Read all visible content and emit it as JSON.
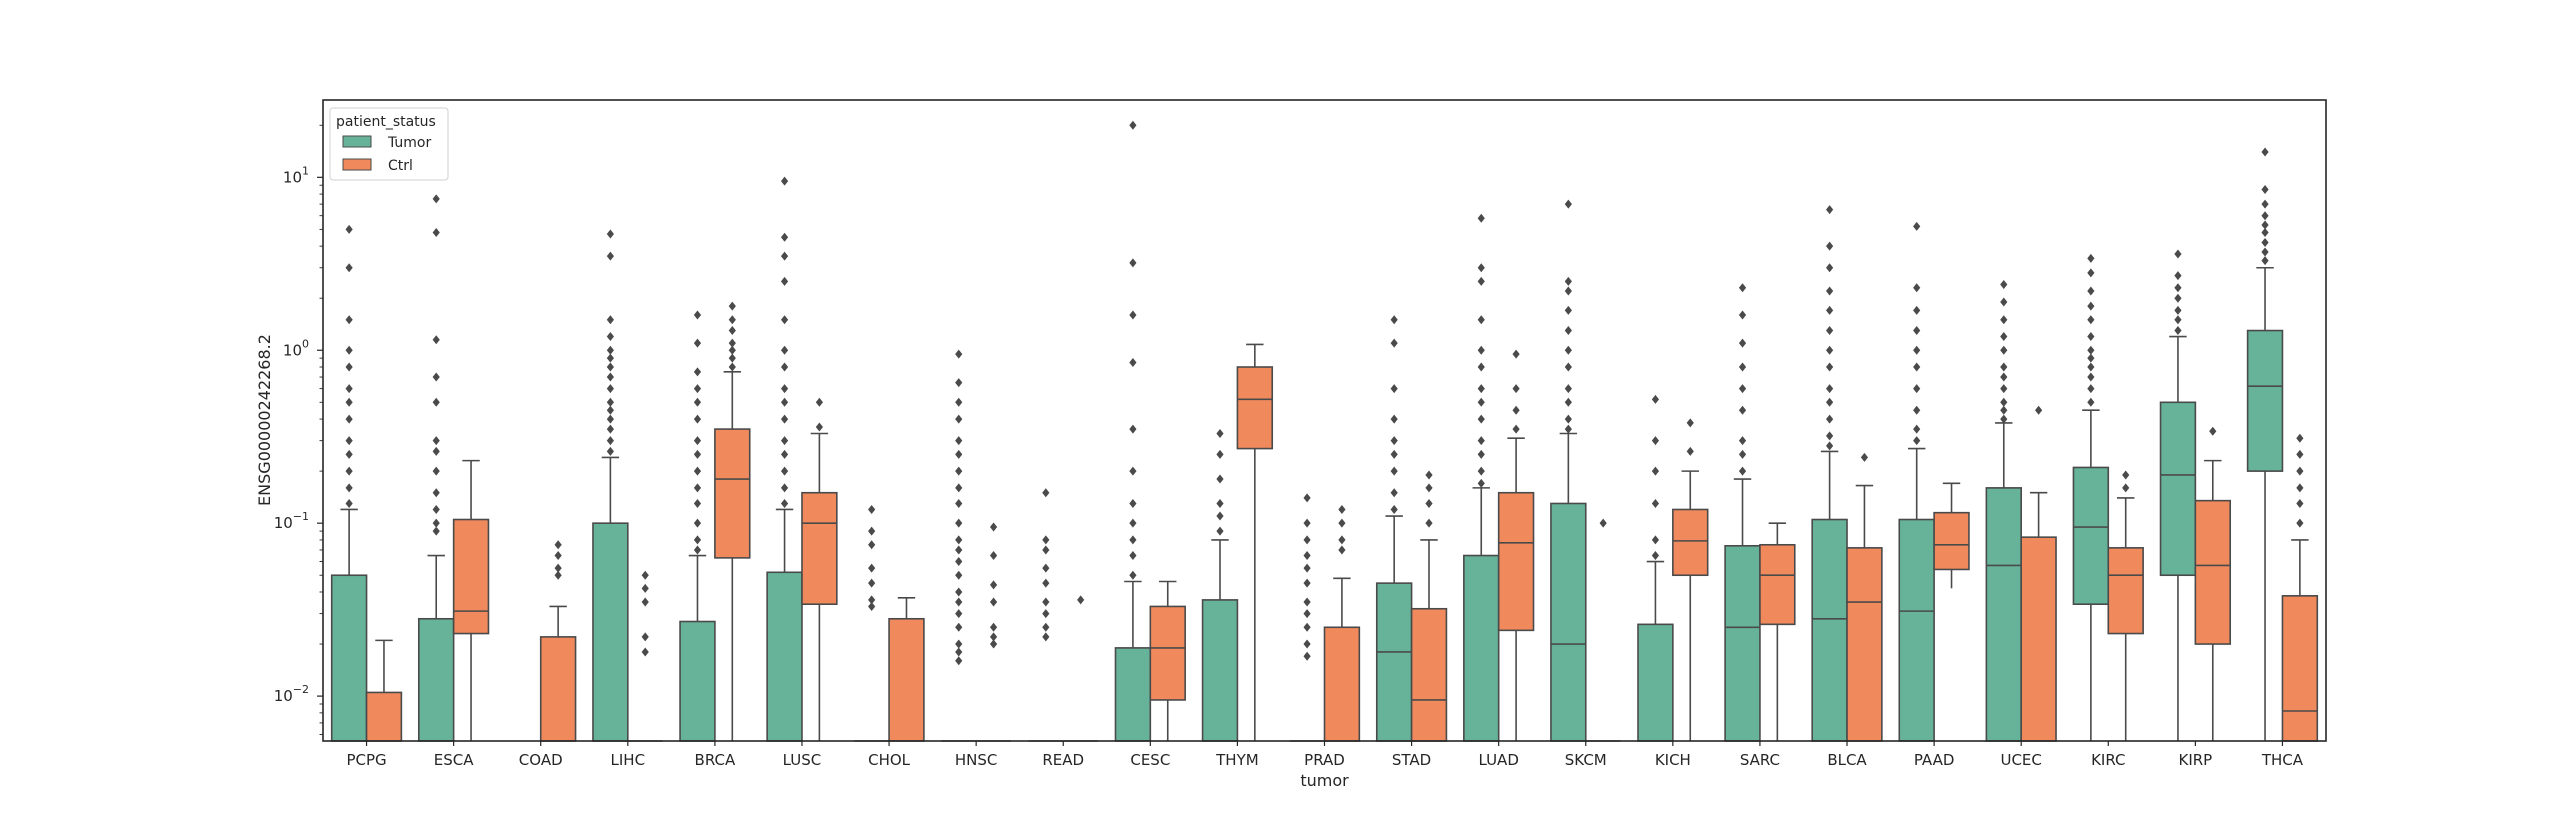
{
  "chart_data": {
    "type": "box",
    "xlabel": "tumor",
    "ylabel": "ENSG00000242268.2",
    "yscale": "log",
    "ylim": [
      0.0055,
      28
    ],
    "yticks": [
      {
        "value": 0.01,
        "base": "10",
        "exp": "−2"
      },
      {
        "value": 0.1,
        "base": "10",
        "exp": "−1"
      },
      {
        "value": 1,
        "base": "10",
        "exp": "0"
      },
      {
        "value": 10,
        "base": "10",
        "exp": "1"
      }
    ],
    "grid": false,
    "legend": {
      "title": "patient_status",
      "placement": "top-left"
    },
    "colors": {
      "Tumor": "#66b399",
      "Ctrl": "#f08a5d",
      "line": "#4a4a4a"
    },
    "categories": [
      "PCPG",
      "ESCA",
      "COAD",
      "LIHC",
      "BRCA",
      "LUSC",
      "CHOL",
      "HNSC",
      "READ",
      "CESC",
      "THYM",
      "PRAD",
      "STAD",
      "LUAD",
      "SKCM",
      "KICH",
      "SARC",
      "BLCA",
      "PAAD",
      "UCEC",
      "KIRC",
      "KIRP",
      "THCA"
    ],
    "series": [
      {
        "name": "Tumor",
        "boxes": [
          {
            "q1": 0.0055,
            "med": 0.0055,
            "q3": 0.05,
            "wlo": 0.0055,
            "whi": 0.12,
            "fliers": [
              0.13,
              0.16,
              0.2,
              0.25,
              0.3,
              0.4,
              0.5,
              0.6,
              0.8,
              1.0,
              1.5,
              3.0,
              5.0
            ]
          },
          {
            "q1": 0.0055,
            "med": 0.0055,
            "q3": 0.028,
            "wlo": 0.0055,
            "whi": 0.065,
            "fliers": [
              0.09,
              0.1,
              0.12,
              0.15,
              0.2,
              0.26,
              0.3,
              0.5,
              0.7,
              1.15,
              4.8,
              7.5
            ]
          },
          null,
          {
            "q1": 0.0055,
            "med": 0.0055,
            "q3": 0.1,
            "wlo": 0.0055,
            "whi": 0.24,
            "fliers": [
              0.26,
              0.3,
              0.35,
              0.4,
              0.45,
              0.5,
              0.6,
              0.7,
              0.8,
              0.9,
              1.0,
              1.2,
              1.5,
              3.5,
              4.7
            ]
          },
          {
            "q1": 0.0055,
            "med": 0.0055,
            "q3": 0.027,
            "wlo": 0.0055,
            "whi": 0.065,
            "fliers": [
              0.07,
              0.08,
              0.1,
              0.13,
              0.16,
              0.2,
              0.25,
              0.3,
              0.4,
              0.5,
              0.6,
              0.75,
              1.1,
              1.6
            ]
          },
          {
            "q1": 0.0055,
            "med": 0.0055,
            "q3": 0.052,
            "wlo": 0.0055,
            "whi": 0.12,
            "fliers": [
              0.13,
              0.16,
              0.2,
              0.25,
              0.3,
              0.4,
              0.5,
              0.6,
              0.8,
              1.0,
              1.5,
              2.5,
              3.5,
              4.5,
              9.5
            ]
          },
          {
            "q1": 0.0055,
            "med": 0.0055,
            "q3": 0.0055,
            "wlo": 0.0055,
            "whi": 0.0055,
            "fliers": [
              0.033,
              0.036,
              0.045,
              0.055,
              0.075,
              0.09,
              0.12
            ]
          },
          {
            "q1": 0.0055,
            "med": 0.0055,
            "q3": 0.0055,
            "wlo": 0.0055,
            "whi": 0.0055,
            "fliers": [
              0.016,
              0.018,
              0.02,
              0.025,
              0.03,
              0.035,
              0.04,
              0.05,
              0.06,
              0.07,
              0.08,
              0.1,
              0.13,
              0.16,
              0.2,
              0.25,
              0.3,
              0.4,
              0.5,
              0.65,
              0.95
            ]
          },
          {
            "q1": 0.0055,
            "med": 0.0055,
            "q3": 0.0055,
            "wlo": 0.0055,
            "whi": 0.0055,
            "fliers": [
              0.022,
              0.025,
              0.03,
              0.035,
              0.045,
              0.055,
              0.07,
              0.08,
              0.15
            ]
          },
          {
            "q1": 0.0055,
            "med": 0.0055,
            "q3": 0.019,
            "wlo": 0.0055,
            "whi": 0.046,
            "fliers": [
              0.05,
              0.065,
              0.08,
              0.1,
              0.13,
              0.2,
              0.35,
              0.85,
              1.6,
              3.2,
              20
            ]
          },
          {
            "q1": 0.0055,
            "med": 0.0055,
            "q3": 0.036,
            "wlo": 0.0055,
            "whi": 0.08,
            "fliers": [
              0.09,
              0.11,
              0.13,
              0.18,
              0.25,
              0.33
            ]
          },
          {
            "q1": 0.0055,
            "med": 0.0055,
            "q3": 0.0055,
            "wlo": 0.0055,
            "whi": 0.0055,
            "fliers": [
              0.017,
              0.02,
              0.025,
              0.03,
              0.035,
              0.045,
              0.055,
              0.065,
              0.08,
              0.1,
              0.14
            ]
          },
          {
            "q1": 0.0055,
            "med": 0.018,
            "q3": 0.045,
            "wlo": 0.0055,
            "whi": 0.11,
            "fliers": [
              0.12,
              0.15,
              0.2,
              0.25,
              0.3,
              0.4,
              0.6,
              1.1,
              1.5
            ]
          },
          {
            "q1": 0.0055,
            "med": 0.0055,
            "q3": 0.065,
            "wlo": 0.0055,
            "whi": 0.16,
            "fliers": [
              0.17,
              0.2,
              0.25,
              0.3,
              0.4,
              0.5,
              0.6,
              0.8,
              1.0,
              1.5,
              2.5,
              3.0,
              5.8
            ]
          },
          {
            "q1": 0.0055,
            "med": 0.02,
            "q3": 0.13,
            "wlo": 0.0055,
            "whi": 0.33,
            "fliers": [
              0.35,
              0.4,
              0.5,
              0.6,
              0.8,
              1.0,
              1.3,
              1.7,
              2.2,
              2.5,
              7.0
            ]
          },
          {
            "q1": 0.0055,
            "med": 0.0055,
            "q3": 0.026,
            "wlo": 0.0055,
            "whi": 0.06,
            "fliers": [
              0.065,
              0.08,
              0.13,
              0.2,
              0.3,
              0.52
            ]
          },
          {
            "q1": 0.0055,
            "med": 0.025,
            "q3": 0.074,
            "wlo": 0.0055,
            "whi": 0.18,
            "fliers": [
              0.2,
              0.25,
              0.3,
              0.45,
              0.6,
              0.8,
              1.1,
              1.6,
              2.3
            ]
          },
          {
            "q1": 0.0055,
            "med": 0.028,
            "q3": 0.105,
            "wlo": 0.0055,
            "whi": 0.26,
            "fliers": [
              0.28,
              0.32,
              0.4,
              0.5,
              0.6,
              0.8,
              1.0,
              1.3,
              1.7,
              2.2,
              3.0,
              4.0,
              6.5
            ]
          },
          {
            "q1": 0.0055,
            "med": 0.031,
            "q3": 0.105,
            "wlo": 0.0055,
            "whi": 0.27,
            "fliers": [
              0.3,
              0.35,
              0.45,
              0.6,
              0.8,
              1.0,
              1.3,
              1.7,
              2.3,
              5.2
            ]
          },
          {
            "q1": 0.0055,
            "med": 0.057,
            "q3": 0.16,
            "wlo": 0.0055,
            "whi": 0.38,
            "fliers": [
              0.4,
              0.45,
              0.5,
              0.6,
              0.7,
              0.8,
              1.0,
              1.2,
              1.5,
              1.9,
              2.4
            ]
          },
          {
            "q1": 0.034,
            "med": 0.095,
            "q3": 0.21,
            "wlo": 0.0055,
            "whi": 0.45,
            "fliers": [
              0.5,
              0.6,
              0.7,
              0.8,
              0.9,
              1.0,
              1.2,
              1.5,
              1.8,
              2.2,
              2.8,
              3.4
            ]
          },
          {
            "q1": 0.05,
            "med": 0.19,
            "q3": 0.5,
            "wlo": 0.0055,
            "whi": 1.2,
            "fliers": [
              1.3,
              1.5,
              1.7,
              2.0,
              2.3,
              2.7,
              3.6
            ]
          },
          {
            "q1": 0.2,
            "med": 0.62,
            "q3": 1.3,
            "wlo": 0.0055,
            "whi": 3.0,
            "fliers": [
              3.3,
              3.7,
              4.2,
              4.8,
              5.3,
              6.0,
              7.0,
              8.5,
              14
            ]
          }
        ]
      },
      {
        "name": "Ctrl",
        "boxes": [
          {
            "q1": 0.0055,
            "med": 0.0055,
            "q3": 0.0105,
            "wlo": 0.0055,
            "whi": 0.021,
            "fliers": []
          },
          {
            "q1": 0.023,
            "med": 0.031,
            "q3": 0.105,
            "wlo": 0.0055,
            "whi": 0.23,
            "fliers": []
          },
          {
            "q1": 0.0055,
            "med": 0.0055,
            "q3": 0.022,
            "wlo": 0.0055,
            "whi": 0.033,
            "fliers": [
              0.05,
              0.055,
              0.065,
              0.075
            ]
          },
          {
            "q1": 0.0055,
            "med": 0.0055,
            "q3": 0.0055,
            "wlo": 0.0055,
            "whi": 0.0055,
            "fliers": [
              0.018,
              0.022,
              0.035,
              0.042,
              0.05
            ]
          },
          {
            "q1": 0.063,
            "med": 0.18,
            "q3": 0.35,
            "wlo": 0.0055,
            "whi": 0.75,
            "fliers": [
              0.8,
              0.9,
              1.0,
              1.1,
              1.3,
              1.5,
              1.8
            ]
          },
          {
            "q1": 0.034,
            "med": 0.1,
            "q3": 0.15,
            "wlo": 0.0055,
            "whi": 0.33,
            "fliers": [
              0.36,
              0.5
            ]
          },
          {
            "q1": 0.0055,
            "med": 0.0055,
            "q3": 0.028,
            "wlo": 0.0055,
            "whi": 0.037,
            "fliers": []
          },
          {
            "q1": 0.0055,
            "med": 0.0055,
            "q3": 0.0055,
            "wlo": 0.0055,
            "whi": 0.0055,
            "fliers": [
              0.02,
              0.022,
              0.025,
              0.035,
              0.044,
              0.065,
              0.095
            ]
          },
          {
            "q1": 0.0055,
            "med": 0.0055,
            "q3": 0.0055,
            "wlo": 0.0055,
            "whi": 0.0055,
            "fliers": [
              0.036
            ]
          },
          {
            "q1": 0.0095,
            "med": 0.019,
            "q3": 0.033,
            "wlo": 0.0055,
            "whi": 0.046,
            "fliers": []
          },
          {
            "q1": 0.27,
            "med": 0.52,
            "q3": 0.8,
            "wlo": 0.0055,
            "whi": 1.08,
            "fliers": []
          },
          {
            "q1": 0.0055,
            "med": 0.0055,
            "q3": 0.025,
            "wlo": 0.0055,
            "whi": 0.048,
            "fliers": [
              0.07,
              0.08,
              0.1,
              0.12
            ]
          },
          {
            "q1": 0.0055,
            "med": 0.0095,
            "q3": 0.032,
            "wlo": 0.0055,
            "whi": 0.08,
            "fliers": [
              0.1,
              0.13,
              0.16,
              0.19
            ]
          },
          {
            "q1": 0.024,
            "med": 0.077,
            "q3": 0.15,
            "wlo": 0.0055,
            "whi": 0.31,
            "fliers": [
              0.35,
              0.45,
              0.6,
              0.95
            ]
          },
          {
            "q1": 0.0055,
            "med": 0.0055,
            "q3": 0.0055,
            "wlo": 0.0055,
            "whi": 0.0055,
            "fliers": [
              0.1
            ]
          },
          {
            "q1": 0.05,
            "med": 0.079,
            "q3": 0.12,
            "wlo": 0.0055,
            "whi": 0.2,
            "fliers": [
              0.26,
              0.38
            ]
          },
          {
            "q1": 0.026,
            "med": 0.05,
            "q3": 0.075,
            "wlo": 0.0055,
            "whi": 0.1,
            "fliers": []
          },
          {
            "q1": 0.0055,
            "med": 0.035,
            "q3": 0.072,
            "wlo": 0.0055,
            "whi": 0.165,
            "fliers": [
              0.24
            ]
          },
          {
            "q1": 0.054,
            "med": 0.075,
            "q3": 0.115,
            "wlo": 0.042,
            "whi": 0.17,
            "fliers": []
          },
          {
            "q1": 0.0055,
            "med": 0.0055,
            "q3": 0.083,
            "wlo": 0.0055,
            "whi": 0.15,
            "fliers": [
              0.45
            ]
          },
          {
            "q1": 0.023,
            "med": 0.05,
            "q3": 0.072,
            "wlo": 0.0055,
            "whi": 0.14,
            "fliers": [
              0.16,
              0.19
            ]
          },
          {
            "q1": 0.02,
            "med": 0.057,
            "q3": 0.135,
            "wlo": 0.0055,
            "whi": 0.23,
            "fliers": [
              0.34
            ]
          },
          {
            "q1": 0.0055,
            "med": 0.0082,
            "q3": 0.038,
            "wlo": 0.0055,
            "whi": 0.08,
            "fliers": [
              0.1,
              0.13,
              0.16,
              0.2,
              0.25,
              0.31
            ]
          }
        ]
      }
    ]
  }
}
